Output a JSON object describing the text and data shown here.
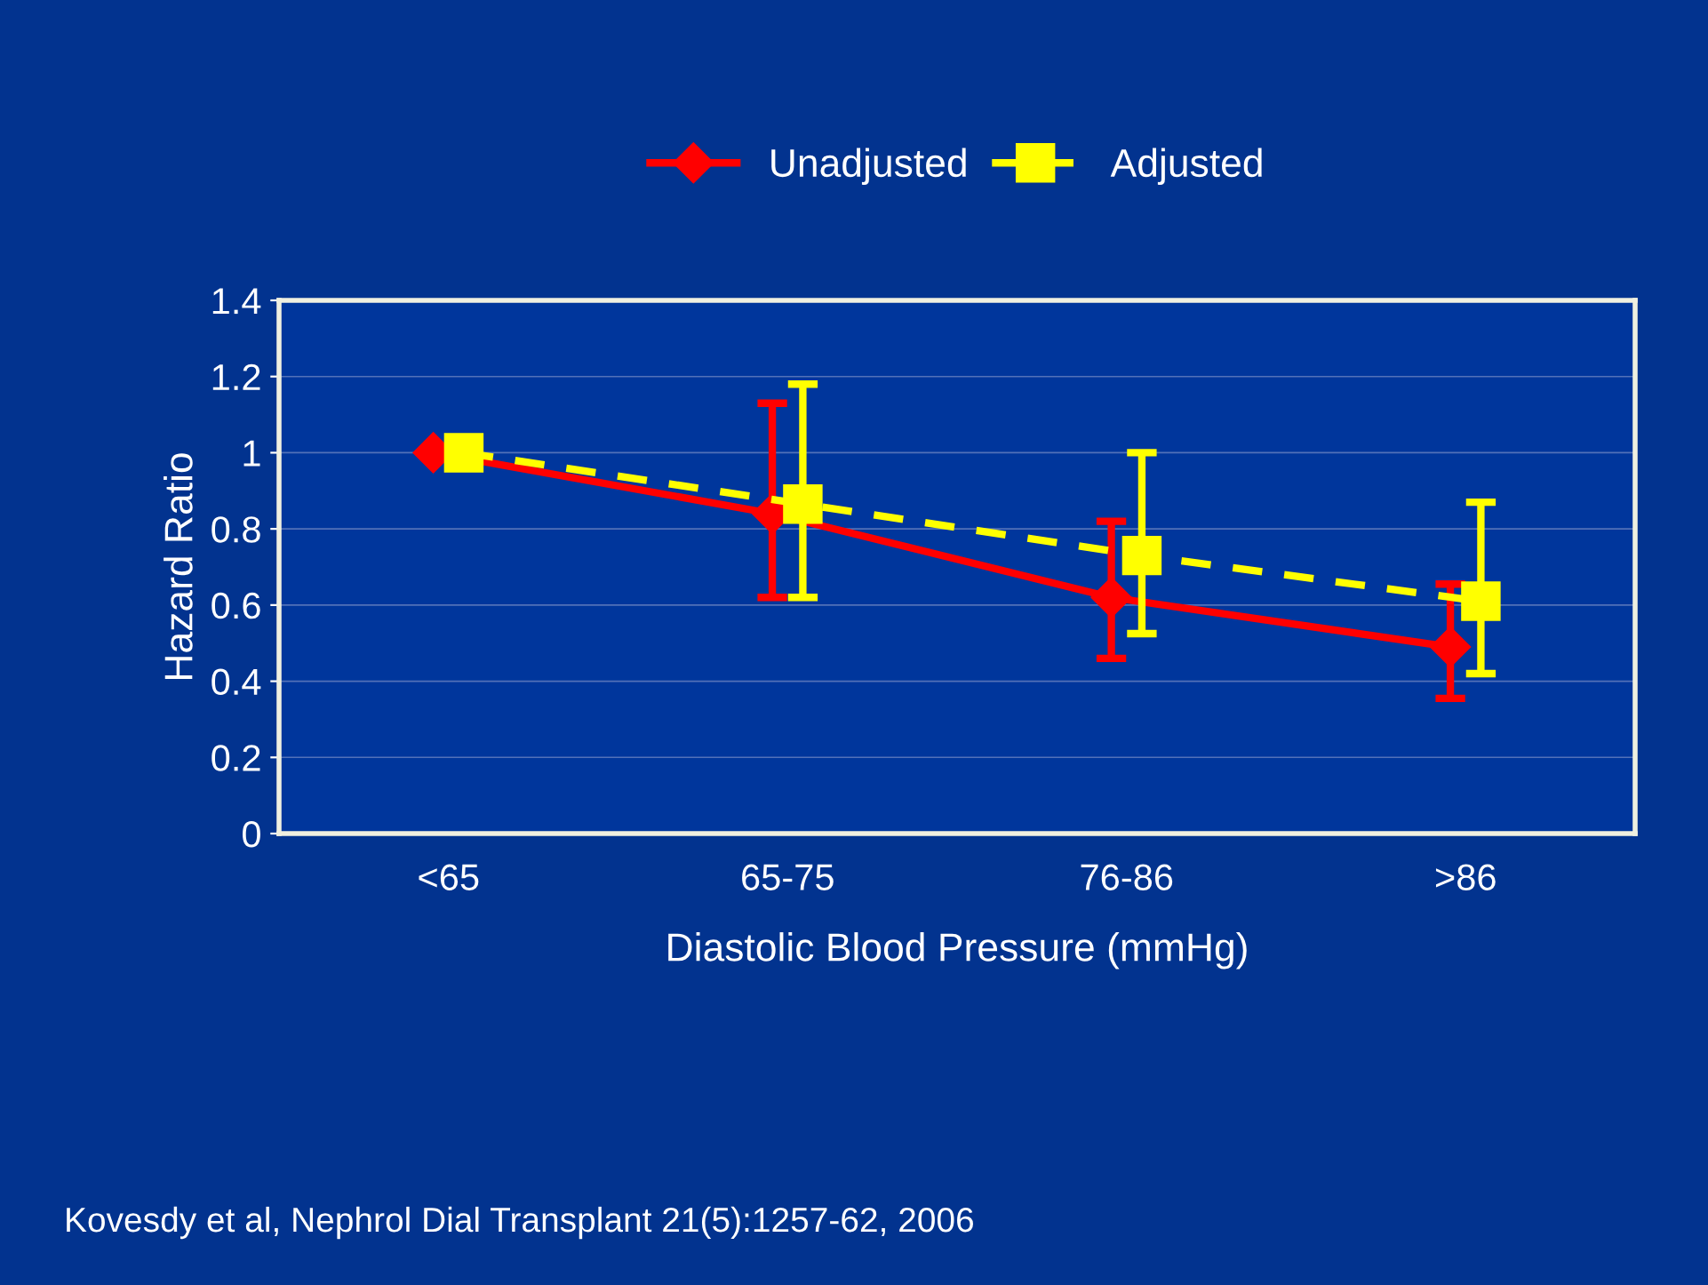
{
  "chart_data": {
    "type": "line",
    "xlabel": "Diastolic Blood Pressure (mmHg)",
    "ylabel": "Hazard Ratio",
    "categories": [
      "<65",
      "65-75",
      "76-86",
      ">86"
    ],
    "series": [
      {
        "name": "Unadjusted",
        "color": "#ff0000",
        "values": [
          1.0,
          0.84,
          0.62,
          0.49
        ],
        "errors": [
          null,
          [
            0.62,
            1.13
          ],
          [
            0.46,
            0.82
          ],
          [
            0.355,
            0.655
          ]
        ],
        "marker": "diamond",
        "line_style": "solid"
      },
      {
        "name": "Adjusted",
        "color": "#ffff00",
        "values": [
          1.0,
          0.865,
          0.73,
          0.61
        ],
        "errors": [
          null,
          [
            0.62,
            1.18
          ],
          [
            0.525,
            1.0
          ],
          [
            0.42,
            0.87
          ]
        ],
        "marker": "square",
        "line_style": "dashed"
      }
    ],
    "ylim": [
      0,
      1.4
    ],
    "yticks": [
      0,
      0.2,
      0.4,
      0.6,
      0.8,
      1,
      1.2,
      1.4
    ],
    "grid": "y",
    "legend": "top",
    "annotations": [
      "Kovesdy et al, Nephrol Dial Transplant 21(5):1257-62, 2006"
    ]
  }
}
